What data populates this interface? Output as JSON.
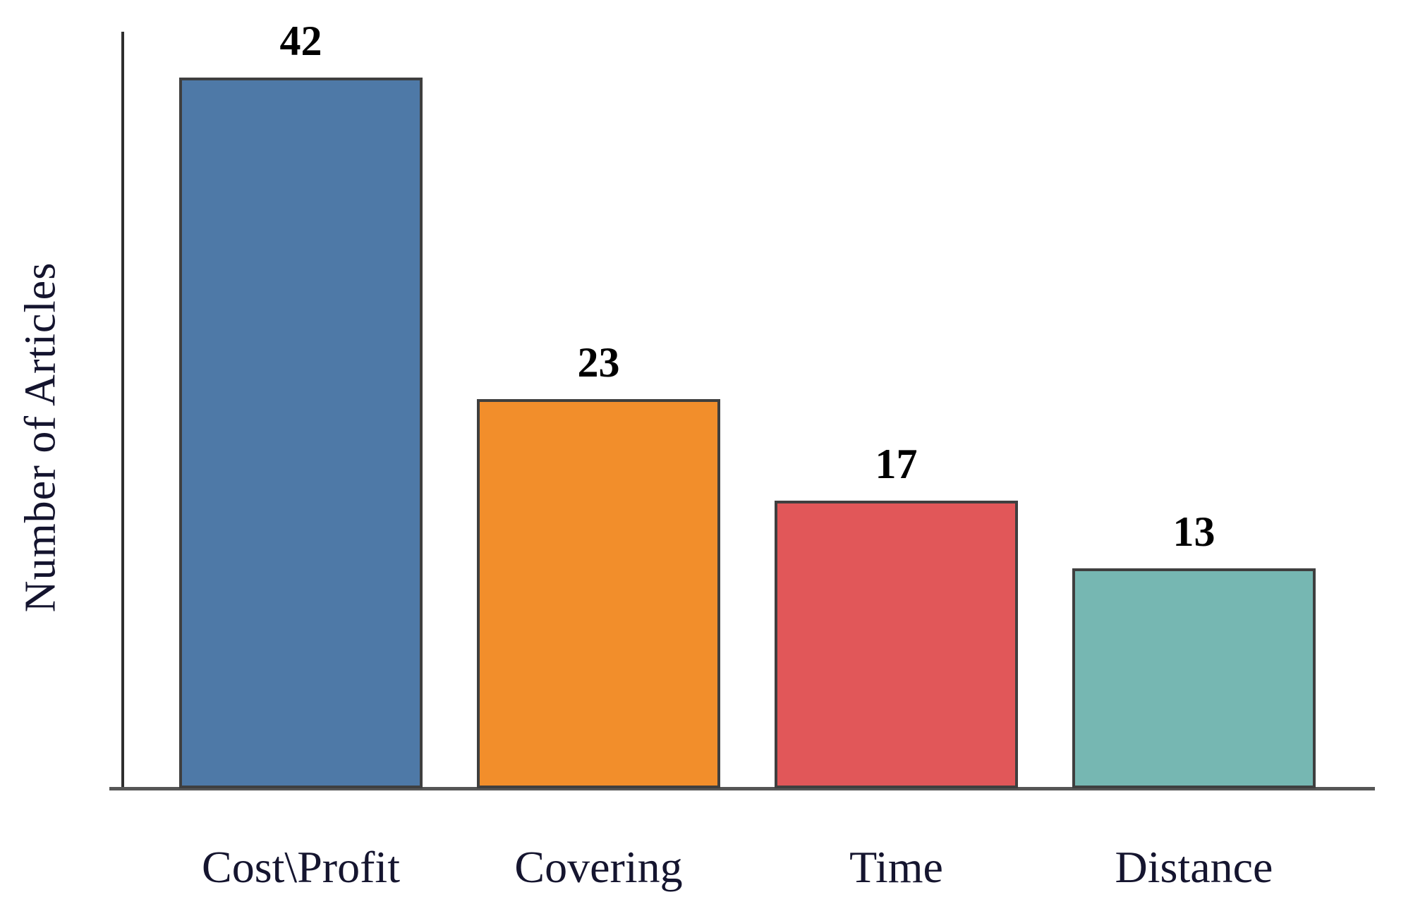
{
  "chart_data": {
    "type": "bar",
    "title": "",
    "categories": [
      "Cost\\Profit",
      "Covering",
      "Time",
      "Distance"
    ],
    "values": [
      42,
      23,
      17,
      13
    ],
    "colors": [
      "#4E79A7",
      "#F28E2B",
      "#E15759",
      "#76B7B2"
    ],
    "bar_border_color": "#3f3f3f",
    "xlabel": "",
    "ylabel": "Number of Articles",
    "ylim": [
      0,
      45
    ],
    "grid": "off",
    "legend": "none",
    "value_labels": "above bars, bold"
  }
}
